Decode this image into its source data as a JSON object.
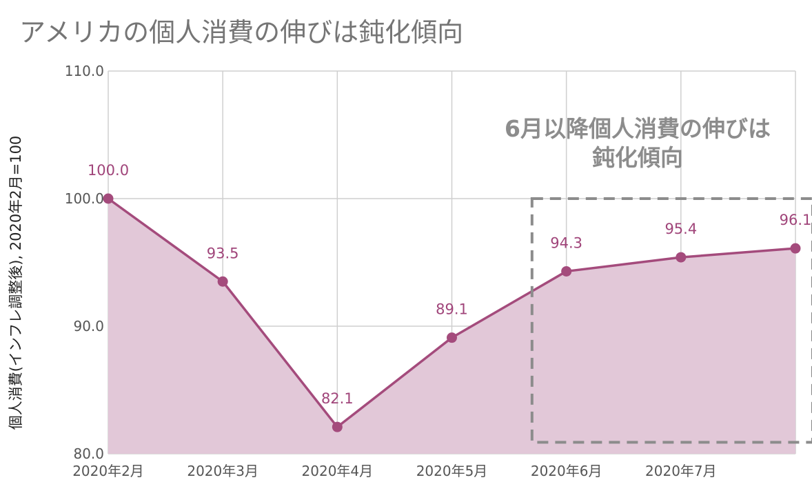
{
  "chart_data": {
    "type": "area",
    "title": "アメリカの個人消費の伸びは鈍化傾向",
    "xlabel": "",
    "ylabel": "個人消費(インフレ調整後), 2020年2月=100",
    "categories": [
      "2020年2月",
      "2020年3月",
      "2020年4月",
      "2020年5月",
      "2020年6月",
      "2020年7月",
      ""
    ],
    "x_tick_labels": [
      "2020年2月",
      "2020年3月",
      "2020年4月",
      "2020年5月",
      "2020年6月",
      "2020年7月"
    ],
    "series": [
      {
        "values": [
          100.0,
          93.5,
          82.1,
          89.1,
          94.3,
          95.4,
          96.1
        ],
        "labels": [
          "100.0",
          "93.5",
          "82.1",
          "89.1",
          "94.3",
          "95.4",
          "96.1"
        ]
      }
    ],
    "y_ticks": [
      "80.0",
      "90.0",
      "100.0",
      "110.0"
    ],
    "y_tick_values": [
      80,
      90,
      100,
      110
    ],
    "ylim": [
      80,
      110
    ],
    "grid": true,
    "annotation": {
      "lines": [
        "6月以降個人消費の伸びは",
        "鈍化傾向"
      ],
      "x_range": [
        3.7,
        6.15
      ],
      "y_range": [
        80.9,
        100
      ]
    },
    "colors": {
      "line": "#a44b7c",
      "fill": "#e2c8d8",
      "label": "#a0457a",
      "grid": "#cfcfcf",
      "axis_text": "#555555",
      "annotation": "#8c8c8c"
    }
  }
}
